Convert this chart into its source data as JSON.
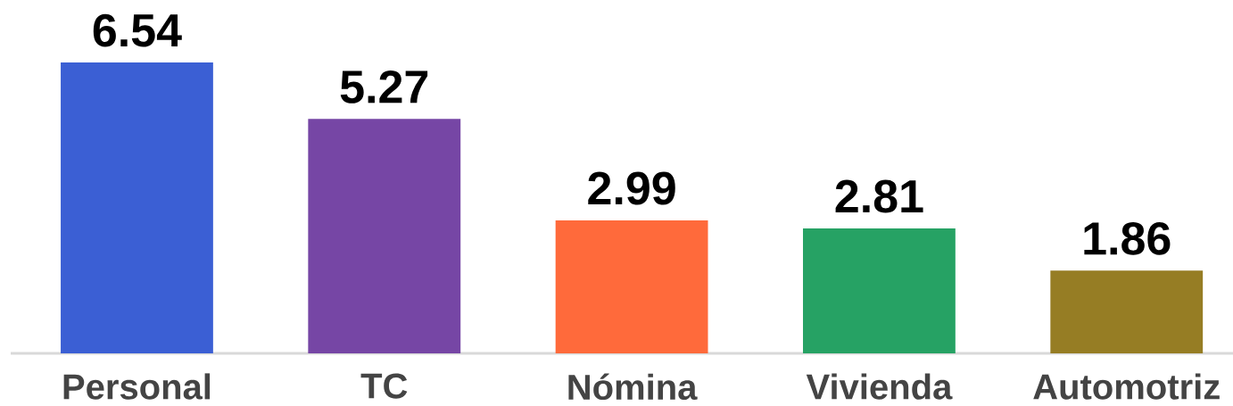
{
  "chart_data": {
    "type": "bar",
    "categories": [
      "Personal",
      "TC",
      "Nómina",
      "Vivienda",
      "Automotriz"
    ],
    "values": [
      6.54,
      5.27,
      2.99,
      2.81,
      1.86
    ],
    "colors": [
      "#3b5fd4",
      "#7646a5",
      "#ff6a3b",
      "#26a264",
      "#967d24"
    ],
    "data_labels": true
  }
}
